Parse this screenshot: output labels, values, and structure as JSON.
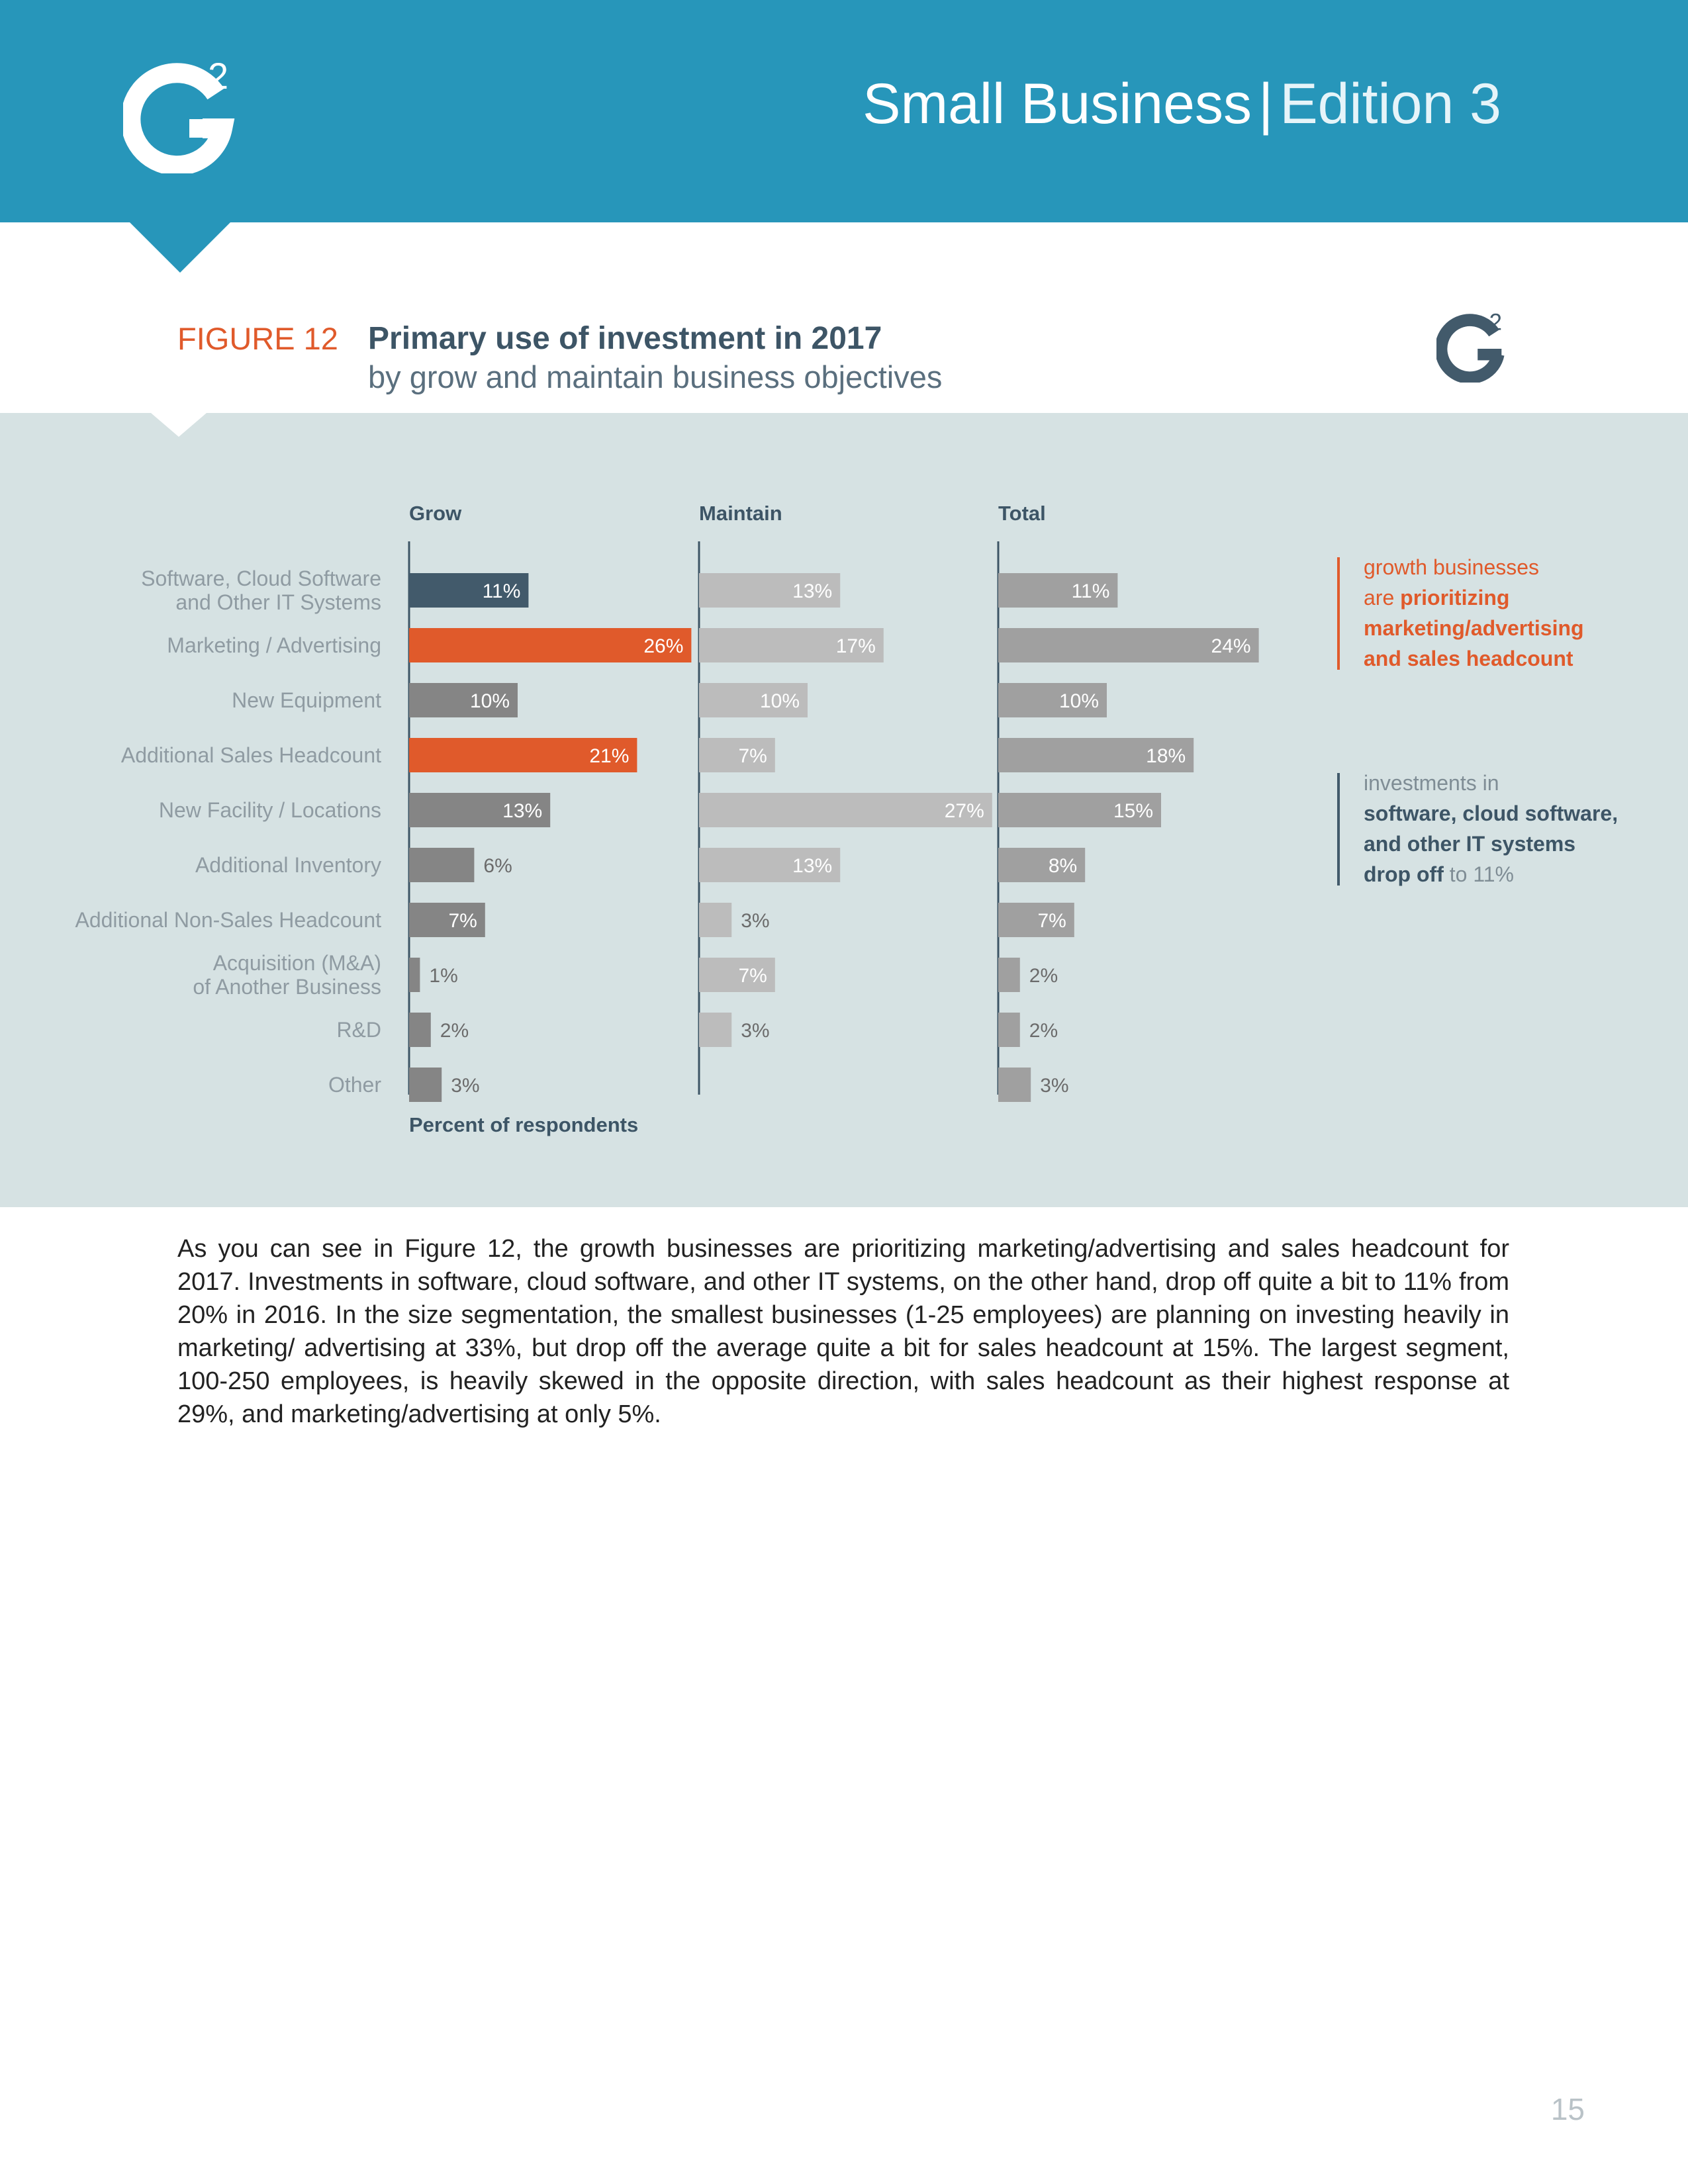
{
  "header": {
    "title_main": "Small Business",
    "separator": "|",
    "title_edition": "Edition 3",
    "logo_text": "2"
  },
  "figure": {
    "label": "FIGURE 12",
    "title": "Primary use of investment in 2017",
    "subtitle": "by grow and maintain business objectives"
  },
  "chart_data": {
    "type": "bar",
    "orientation": "horizontal",
    "title": "Primary use of investment in 2017",
    "subtitle": "by grow and maintain business objectives",
    "xlabel": "Percent of respondents",
    "categories": [
      "Software, Cloud Software and Other IT Systems",
      "Marketing / Advertising",
      "New Equipment",
      "Additional Sales Headcount",
      "New Facility / Locations",
      "Additional Inventory",
      "Additional Non-Sales Headcount",
      "Acquisition (M&A) of Another Business",
      "R&D",
      "Other"
    ],
    "category_lines": [
      [
        "Software, Cloud Software",
        "and Other IT Systems"
      ],
      [
        "Marketing / Advertising"
      ],
      [
        "New Equipment"
      ],
      [
        "Additional Sales Headcount"
      ],
      [
        "New Facility / Locations"
      ],
      [
        "Additional Inventory"
      ],
      [
        "Additional Non-Sales Headcount"
      ],
      [
        "Acquisition (M&A)",
        "of Another Business"
      ],
      [
        "R&D"
      ],
      [
        "Other"
      ]
    ],
    "series": [
      {
        "name": "Grow",
        "values": [
          11,
          26,
          10,
          21,
          13,
          6,
          7,
          1,
          2,
          3
        ],
        "labels": [
          "11%",
          "26%",
          "10%",
          "21%",
          "13%",
          "6%",
          "7%",
          "1%",
          "2%",
          "3%"
        ]
      },
      {
        "name": "Maintain",
        "values": [
          13,
          17,
          10,
          7,
          27,
          13,
          3,
          7,
          3,
          null
        ],
        "labels": [
          "13%",
          "17%",
          "10%",
          "7%",
          "27%",
          "13%",
          "3%",
          "7%",
          "3%",
          ""
        ]
      },
      {
        "name": "Total",
        "values": [
          11,
          24,
          10,
          18,
          15,
          8,
          7,
          2,
          2,
          3
        ],
        "labels": [
          "11%",
          "24%",
          "10%",
          "18%",
          "15%",
          "8%",
          "7%",
          "2%",
          "2%",
          "3%"
        ]
      }
    ],
    "colors": {
      "grow_default": "#858585",
      "grow_highlight": "#e05a2b",
      "grow_software": "#425a6b",
      "maintain": "#bcbcbc",
      "total": "#a0a0a0",
      "axis": "#3d5566",
      "category_text": "#8f9ba2"
    },
    "grid": false,
    "legend": "none"
  },
  "callouts": {
    "growth": {
      "line1": "growth businesses",
      "line2_plain": "are ",
      "line2_bold": "prioritizing",
      "line3": "marketing/advertising",
      "line4": "and sales headcount"
    },
    "software": {
      "line1": "investments in",
      "line2": "software, cloud software,",
      "line3": "and other IT systems",
      "line4_bold": "drop off",
      "line4_plain": " to 11%"
    }
  },
  "body_text": "As you can see in Figure 12, the growth businesses are prioritizing marketing/advertising and sales headcount for 2017. Investments in software, cloud software, and other IT systems, on the other hand, drop off quite a bit to 11% from 20% in 2016. In the size segmentation, the smallest businesses (1-25 employees) are planning on investing heavily in marketing/ advertising at 33%, but drop off the average quite a bit for sales headcount at 15%. The largest segment, 100-250 employees, is heavily skewed in the opposite direction, with sales headcount as their highest response at 29%, and marketing/advertising at only 5%.",
  "page_number": "15"
}
